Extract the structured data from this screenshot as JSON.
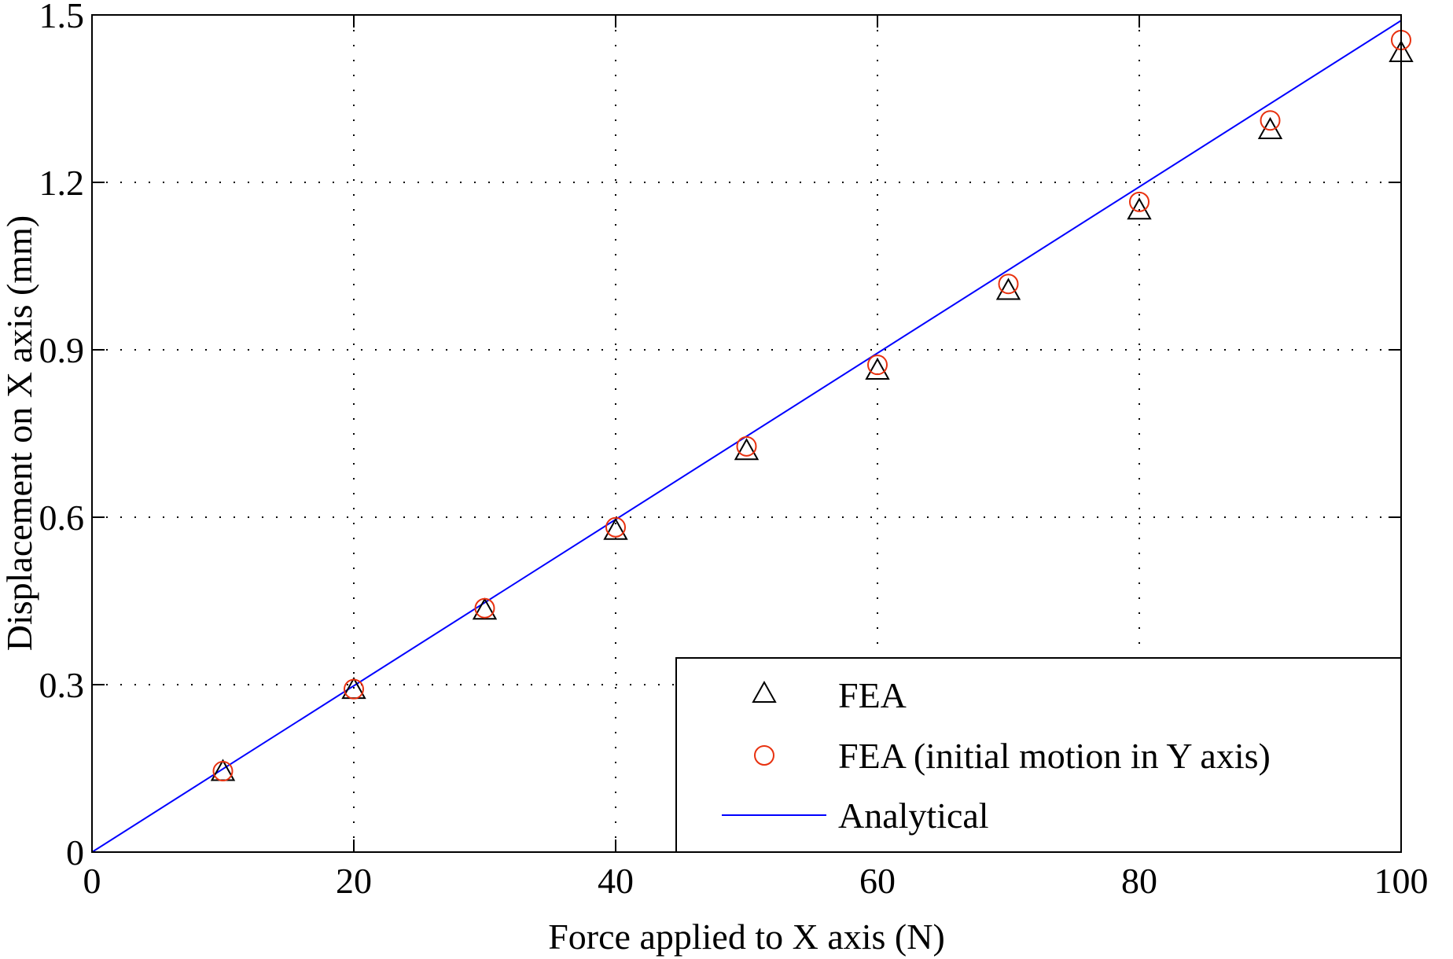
{
  "chart_data": {
    "type": "scatter",
    "title": "",
    "xlabel": "Force applied to X axis (N)",
    "ylabel": "Displacement on X axis (mm)",
    "xlim": [
      0,
      100
    ],
    "ylim": [
      0,
      1.5
    ],
    "xticks": [
      0,
      20,
      40,
      60,
      80,
      100
    ],
    "xtick_labels": [
      "0",
      "20",
      "40",
      "60",
      "80",
      "100"
    ],
    "yticks": [
      0,
      0.3,
      0.6,
      0.9,
      1.2,
      1.5
    ],
    "ytick_labels": [
      "0",
      "0.3",
      "0.6",
      "0.9",
      "1.2",
      "1.5"
    ],
    "grid": true,
    "legend_position": "bottom-right",
    "series": [
      {
        "name": "FEA",
        "marker": "triangle",
        "color": "#000000",
        "x": [
          10,
          20,
          30,
          40,
          50,
          60,
          70,
          80,
          90,
          100
        ],
        "y": [
          0.143,
          0.29,
          0.432,
          0.575,
          0.718,
          0.862,
          1.005,
          1.149,
          1.293,
          1.431
        ]
      },
      {
        "name": "FEA (initial motion in Y axis)",
        "marker": "circle",
        "color": "#e8310f",
        "x": [
          10,
          20,
          30,
          40,
          50,
          60,
          70,
          80,
          90,
          100
        ],
        "y": [
          0.145,
          0.292,
          0.437,
          0.582,
          0.727,
          0.873,
          1.018,
          1.165,
          1.311,
          1.455
        ]
      },
      {
        "name": "Analytical",
        "marker": "line",
        "color": "#0000ff",
        "x": [
          0,
          100
        ],
        "y": [
          0,
          1.49
        ]
      }
    ]
  }
}
